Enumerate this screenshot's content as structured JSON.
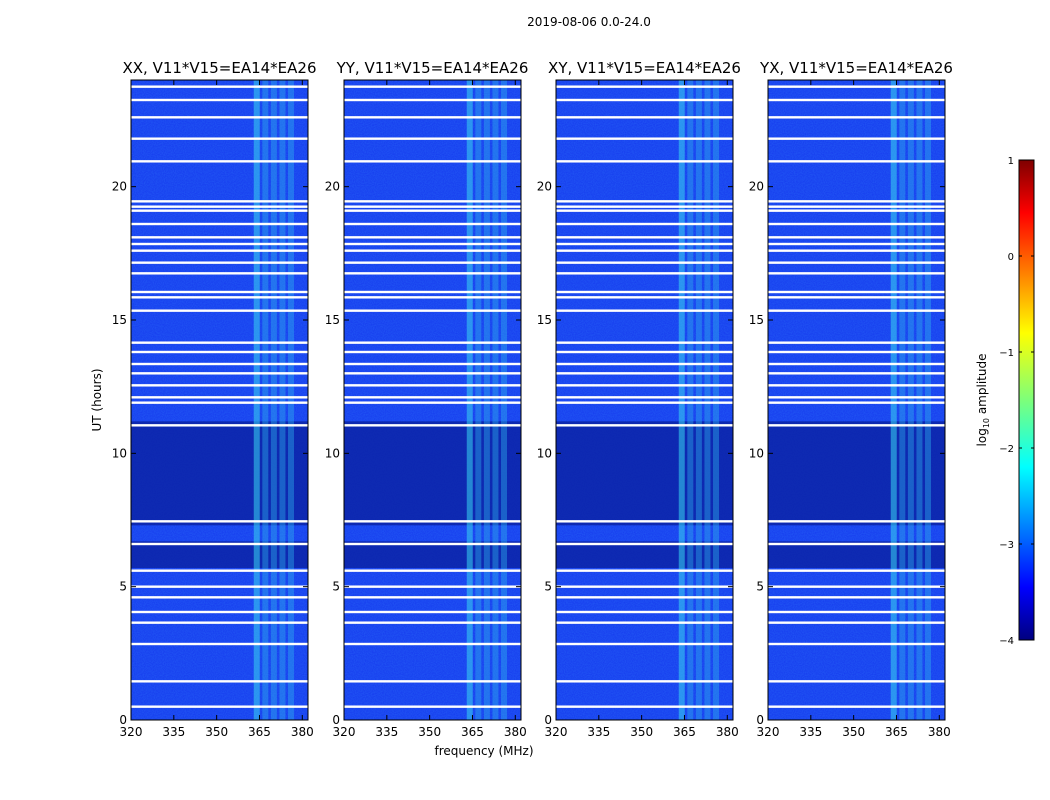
{
  "chart_data": {
    "type": "heatmap",
    "suptitle": "2019-08-06 0.0-24.0",
    "xlabel": "frequency (MHz)",
    "ylabel": "UT (hours)",
    "xlim": [
      320,
      382
    ],
    "ylim": [
      0,
      24
    ],
    "xticks": [
      320,
      335,
      350,
      365,
      380
    ],
    "yticks": [
      0,
      5,
      10,
      15,
      20
    ],
    "panels": [
      {
        "title": "XX, V11*V15=EA14*EA26"
      },
      {
        "title": "YY, V11*V15=EA14*EA26"
      },
      {
        "title": "XY, V11*V15=EA14*EA26"
      },
      {
        "title": "YX, V11*V15=EA14*EA26"
      }
    ],
    "colorbar": {
      "label": "log10 amplitude",
      "range": [
        -4,
        1
      ],
      "ticks": [
        "1",
        "0",
        "−1",
        "−2",
        "−3",
        "−4"
      ],
      "colormap": "jet"
    },
    "rfi_band_mhz": [
      363,
      378
    ],
    "flagged_hours": [
      0.5,
      1.45,
      2.85,
      3.65,
      4.05,
      4.6,
      5.0,
      5.6,
      6.6,
      7.45,
      11.05,
      11.9,
      12.1,
      12.55,
      13.0,
      13.35,
      13.8,
      14.15,
      15.35,
      15.85,
      16.05,
      16.75,
      17.15,
      17.6,
      17.85,
      18.1,
      18.6,
      19.1,
      19.25,
      19.45,
      20.95,
      21.8,
      22.6,
      23.25,
      23.75
    ],
    "low_amplitude_hours": [
      [
        7.3,
        11.2
      ],
      [
        5.7,
        6.7
      ]
    ]
  }
}
